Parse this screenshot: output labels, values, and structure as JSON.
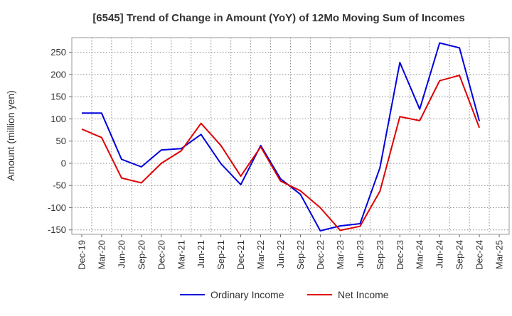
{
  "chart_data": {
    "type": "line",
    "title": "[6545]  Trend of Change in Amount (YoY) of 12Mo Moving Sum of Incomes",
    "xlabel": "",
    "ylabel": "Amount (million yen)",
    "ylim": [
      -160,
      283
    ],
    "yticks": [
      -150,
      -100,
      -50,
      0,
      50,
      100,
      150,
      200,
      250
    ],
    "categories": [
      "Dec-19",
      "Mar-20",
      "Jun-20",
      "Sep-20",
      "Dec-20",
      "Mar-21",
      "Jun-21",
      "Sep-21",
      "Dec-21",
      "Mar-22",
      "Jun-22",
      "Sep-22",
      "Dec-22",
      "Mar-23",
      "Jun-23",
      "Sep-23",
      "Dec-23",
      "Mar-24",
      "Jun-24",
      "Sep-24",
      "Dec-24",
      "Mar-25"
    ],
    "grid": true,
    "legend_position": "bottom-center",
    "series": [
      {
        "name": "Ordinary Income",
        "color": "#0000dd",
        "values": [
          113,
          113,
          9,
          -8,
          30,
          33,
          65,
          -1,
          -48,
          40,
          -35,
          -70,
          -152,
          -141,
          -136,
          -10,
          227,
          122,
          271,
          260,
          95,
          null
        ]
      },
      {
        "name": "Net Income",
        "color": "#dd0000",
        "values": [
          77,
          58,
          -33,
          -44,
          0,
          28,
          90,
          40,
          -29,
          37,
          -40,
          -62,
          -100,
          -151,
          -142,
          -63,
          105,
          96,
          186,
          198,
          80,
          null
        ]
      }
    ]
  }
}
